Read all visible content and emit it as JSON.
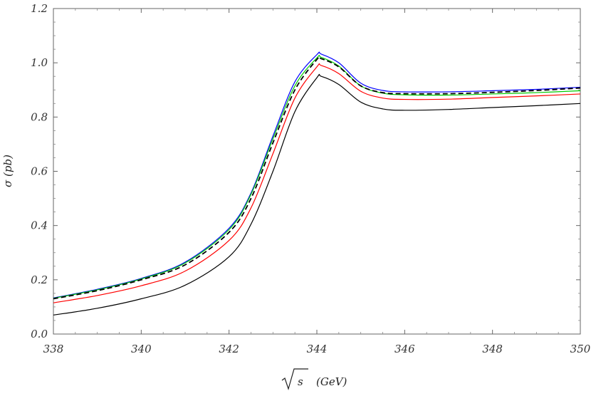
{
  "chart_data": {
    "type": "line",
    "title": "",
    "xlabel": "(GeV)",
    "xlabel_radicand": "s",
    "ylabel": "σ (pb)",
    "xlim": [
      338,
      350
    ],
    "ylim": [
      0.0,
      1.2
    ],
    "xticks": [
      338,
      340,
      342,
      344,
      346,
      348,
      350
    ],
    "xtick_labels": [
      "338",
      "340",
      "342",
      "344",
      "346",
      "348",
      "350"
    ],
    "yticks": [
      0.0,
      0.2,
      0.4,
      0.6,
      0.8,
      1.0,
      1.2
    ],
    "ytick_labels": [
      "0.0",
      "0.2",
      "0.4",
      "0.6",
      "0.8",
      "1.0",
      "1.2"
    ],
    "grid": false,
    "series": [
      {
        "color": "#0000ff",
        "dash": "solid",
        "x": [
          338,
          339,
          340,
          341,
          342,
          342.5,
          343,
          343.5,
          344,
          344.1,
          344.5,
          345,
          345.5,
          346,
          347,
          348,
          349,
          350
        ],
        "y": [
          0.133,
          0.165,
          0.205,
          0.265,
          0.39,
          0.52,
          0.73,
          0.93,
          1.03,
          1.032,
          1.0,
          0.925,
          0.898,
          0.893,
          0.893,
          0.897,
          0.902,
          0.91
        ]
      },
      {
        "color": "#00cc00",
        "dash": "solid",
        "x": [
          338,
          339,
          340,
          341,
          342,
          342.5,
          343,
          343.5,
          344,
          344.1,
          344.5,
          345,
          345.5,
          346,
          347,
          348,
          349,
          350
        ],
        "y": [
          0.132,
          0.163,
          0.203,
          0.262,
          0.385,
          0.515,
          0.72,
          0.915,
          1.018,
          1.02,
          0.988,
          0.915,
          0.888,
          0.882,
          0.881,
          0.885,
          0.89,
          0.897
        ]
      },
      {
        "color": "#000000",
        "dash": "dashed",
        "x": [
          338,
          339,
          340,
          341,
          342,
          342.5,
          343,
          343.5,
          344,
          344.1,
          344.5,
          345,
          345.5,
          346,
          347,
          348,
          349,
          350
        ],
        "y": [
          0.13,
          0.16,
          0.2,
          0.255,
          0.375,
          0.5,
          0.705,
          0.9,
          1.012,
          1.015,
          0.985,
          0.915,
          0.89,
          0.886,
          0.886,
          0.891,
          0.898,
          0.907
        ]
      },
      {
        "color": "#ff0000",
        "dash": "solid",
        "x": [
          338,
          339,
          340,
          341,
          342,
          342.5,
          343,
          343.5,
          344,
          344.1,
          344.5,
          345,
          345.5,
          346,
          347,
          348,
          349,
          350
        ],
        "y": [
          0.115,
          0.142,
          0.178,
          0.232,
          0.345,
          0.465,
          0.665,
          0.87,
          0.985,
          0.99,
          0.96,
          0.895,
          0.87,
          0.865,
          0.866,
          0.872,
          0.878,
          0.885
        ]
      },
      {
        "color": "#000000",
        "dash": "solid",
        "x": [
          338,
          339,
          340,
          341,
          342,
          342.5,
          343,
          343.5,
          344,
          344.1,
          344.5,
          345,
          345.5,
          346,
          347,
          348,
          349,
          350
        ],
        "y": [
          0.07,
          0.095,
          0.13,
          0.18,
          0.285,
          0.405,
          0.6,
          0.82,
          0.945,
          0.95,
          0.92,
          0.855,
          0.83,
          0.825,
          0.828,
          0.835,
          0.842,
          0.85
        ]
      }
    ]
  }
}
